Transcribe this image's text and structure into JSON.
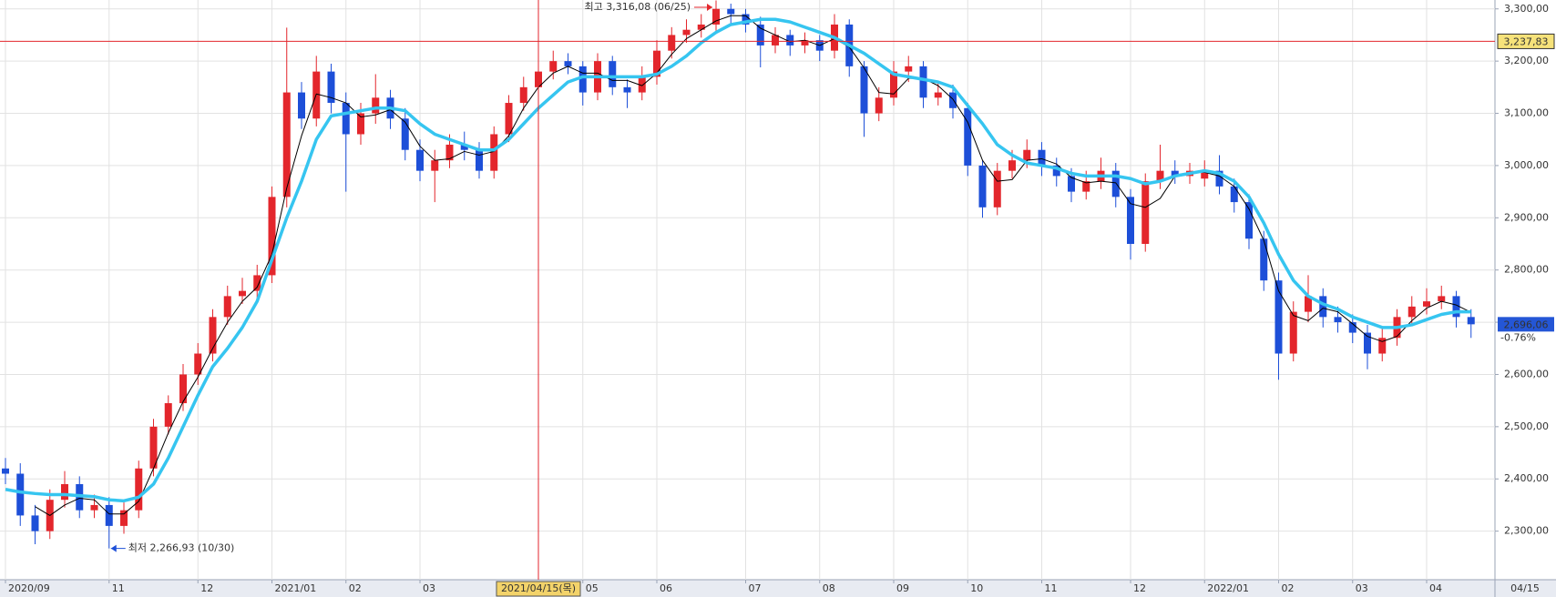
{
  "chart_data": {
    "type": "candlestick",
    "categories": [
      "2020/09",
      null,
      null,
      null,
      null,
      null,
      null,
      "11",
      null,
      null,
      null,
      null,
      null,
      "12",
      null,
      null,
      null,
      null,
      "2021/01",
      null,
      null,
      null,
      null,
      "02",
      null,
      null,
      null,
      null,
      "03",
      null,
      null,
      null,
      null,
      null,
      null,
      null,
      "2021/04/15(목)",
      null,
      null,
      "05",
      null,
      null,
      null,
      null,
      "06",
      null,
      null,
      null,
      null,
      null,
      "07",
      null,
      null,
      null,
      null,
      "08",
      null,
      null,
      null,
      null,
      "09",
      null,
      null,
      null,
      null,
      "10",
      null,
      null,
      null,
      null,
      "11",
      null,
      null,
      null,
      null,
      null,
      "12",
      null,
      null,
      null,
      null,
      "2022/01",
      null,
      null,
      null,
      null,
      "02",
      null,
      null,
      null,
      null,
      "03",
      null,
      null,
      null,
      null,
      "04",
      null,
      null,
      null
    ],
    "open": [
      2420,
      2410,
      2330,
      2300,
      2360,
      2390,
      2340,
      2350,
      2310,
      2340,
      2420,
      2500,
      2545,
      2600,
      2640,
      2710,
      2750,
      2760,
      2790,
      2940,
      3140,
      3090,
      3180,
      3120,
      3060,
      3100,
      3130,
      3090,
      3030,
      2990,
      3010,
      3040,
      3030,
      2990,
      3060,
      3120,
      3150,
      3180,
      3200,
      3190,
      3140,
      3200,
      3150,
      3140,
      3170,
      3220,
      3250,
      3260,
      3270,
      3300,
      3290,
      3270,
      3230,
      3250,
      3230,
      3240,
      3220,
      3270,
      3190,
      3100,
      3130,
      3180,
      3190,
      3130,
      3140,
      3110,
      3000,
      2920,
      2990,
      3010,
      3030,
      3000,
      2980,
      2950,
      2970,
      2990,
      2940,
      2850,
      2970,
      2990,
      2980,
      2975,
      2990,
      2960,
      2930,
      2860,
      2780,
      2640,
      2720,
      2750,
      2710,
      2700,
      2680,
      2640,
      2670,
      2710,
      2730,
      2740,
      2750,
      2710
    ],
    "high": [
      2440,
      2430,
      2350,
      2380,
      2415,
      2405,
      2370,
      2365,
      2355,
      2435,
      2515,
      2560,
      2620,
      2660,
      2725,
      2770,
      2785,
      2810,
      2960,
      3264,
      3160,
      3210,
      3195,
      3140,
      3120,
      3175,
      3145,
      3110,
      3050,
      3030,
      3060,
      3065,
      3045,
      3075,
      3135,
      3170,
      3200,
      3220,
      3215,
      3200,
      3215,
      3210,
      3165,
      3190,
      3240,
      3265,
      3280,
      3290,
      3316.08,
      3310,
      3300,
      3285,
      3265,
      3260,
      3255,
      3250,
      3290,
      3280,
      3200,
      3150,
      3200,
      3210,
      3200,
      3160,
      3155,
      3120,
      3010,
      3005,
      3030,
      3050,
      3045,
      3015,
      2995,
      2990,
      3015,
      3005,
      2955,
      2985,
      3040,
      3010,
      3005,
      3010,
      3020,
      2975,
      2945,
      2875,
      2795,
      2740,
      2790,
      2765,
      2730,
      2715,
      2695,
      2690,
      2725,
      2750,
      2765,
      2770,
      2760,
      2725
    ],
    "low": [
      2390,
      2310,
      2275,
      2285,
      2345,
      2325,
      2325,
      2266.93,
      2295,
      2325,
      2405,
      2485,
      2530,
      2580,
      2625,
      2695,
      2735,
      2745,
      2775,
      2920,
      3070,
      3075,
      3100,
      2950,
      3040,
      3080,
      3070,
      3010,
      2970,
      2930,
      2995,
      3010,
      2975,
      2975,
      3045,
      3105,
      3135,
      3165,
      3175,
      3115,
      3125,
      3135,
      3110,
      3125,
      3155,
      3205,
      3235,
      3245,
      3255,
      3270,
      3255,
      3188,
      3215,
      3210,
      3215,
      3200,
      3205,
      3170,
      3055,
      3085,
      3115,
      3160,
      3110,
      3115,
      3090,
      2980,
      2900,
      2905,
      2975,
      2995,
      2980,
      2960,
      2930,
      2935,
      2955,
      2920,
      2820,
      2835,
      2955,
      2965,
      2965,
      2960,
      2945,
      2910,
      2840,
      2760,
      2590,
      2625,
      2700,
      2690,
      2680,
      2660,
      2610,
      2625,
      2655,
      2695,
      2715,
      2725,
      2690,
      2670
    ],
    "close": [
      2410,
      2330,
      2300,
      2360,
      2390,
      2340,
      2350,
      2310,
      2340,
      2420,
      2500,
      2545,
      2600,
      2640,
      2710,
      2750,
      2760,
      2790,
      2940,
      3140,
      3090,
      3180,
      3120,
      3060,
      3100,
      3130,
      3090,
      3030,
      2990,
      3010,
      3040,
      3030,
      2990,
      3060,
      3120,
      3150,
      3180,
      3200,
      3190,
      3140,
      3200,
      3150,
      3140,
      3170,
      3220,
      3250,
      3260,
      3270,
      3300,
      3290,
      3270,
      3230,
      3250,
      3230,
      3240,
      3220,
      3270,
      3190,
      3100,
      3130,
      3180,
      3190,
      3130,
      3140,
      3110,
      3000,
      2920,
      2990,
      3010,
      3030,
      3000,
      2980,
      2950,
      2970,
      2990,
      2940,
      2850,
      2970,
      2990,
      2980,
      2990,
      2990,
      2960,
      2930,
      2860,
      2780,
      2640,
      2720,
      2750,
      2710,
      2700,
      2680,
      2640,
      2670,
      2710,
      2730,
      2740,
      2750,
      2710,
      2696.06
    ],
    "up_color": "#e3262c",
    "down_color": "#1d4fd8",
    "overlays": [
      {
        "color": "#000000",
        "width": 1,
        "values": [
          null,
          null,
          2347,
          2330,
          2350,
          2363,
          2360,
          2333,
          2333,
          2357,
          2420,
          2488,
          2548,
          2595,
          2650,
          2700,
          2740,
          2767,
          2830,
          2957,
          3057,
          3137,
          3130,
          3120,
          3093,
          3097,
          3107,
          3083,
          3037,
          3010,
          3013,
          3027,
          3020,
          3027,
          3057,
          3110,
          3150,
          3177,
          3190,
          3177,
          3177,
          3163,
          3163,
          3153,
          3177,
          3213,
          3243,
          3260,
          3277,
          3287,
          3287,
          3263,
          3250,
          3237,
          3240,
          3230,
          3243,
          3227,
          3187,
          3140,
          3137,
          3167,
          3167,
          3153,
          3127,
          3083,
          3010,
          2970,
          2973,
          3010,
          3013,
          3003,
          2977,
          2967,
          2970,
          2967,
          2927,
          2920,
          2937,
          2980,
          2987,
          2987,
          2980,
          2960,
          2917,
          2857,
          2760,
          2713,
          2703,
          2727,
          2720,
          2697,
          2673,
          2663,
          2673,
          2703,
          2727,
          2740,
          2733,
          2719
        ]
      },
      {
        "color": "#36c5f0",
        "width": 3.5,
        "values": [
          2380,
          2375,
          2372,
          2370,
          2370,
          2368,
          2366,
          2360,
          2358,
          2365,
          2390,
          2440,
          2500,
          2560,
          2615,
          2650,
          2690,
          2740,
          2820,
          2900,
          2970,
          3050,
          3095,
          3100,
          3105,
          3110,
          3110,
          3105,
          3080,
          3060,
          3050,
          3040,
          3030,
          3030,
          3050,
          3080,
          3110,
          3135,
          3160,
          3170,
          3170,
          3170,
          3170,
          3170,
          3175,
          3190,
          3210,
          3235,
          3255,
          3270,
          3275,
          3280,
          3280,
          3275,
          3265,
          3255,
          3245,
          3230,
          3215,
          3195,
          3175,
          3170,
          3165,
          3160,
          3150,
          3115,
          3080,
          3040,
          3020,
          3005,
          3000,
          2995,
          2985,
          2980,
          2980,
          2980,
          2975,
          2965,
          2970,
          2980,
          2985,
          2990,
          2985,
          2970,
          2940,
          2890,
          2830,
          2780,
          2750,
          2735,
          2725,
          2710,
          2700,
          2690,
          2690,
          2695,
          2705,
          2715,
          2720,
          2720
        ]
      }
    ],
    "ylim": [
      2207,
      3317
    ],
    "yticks": [
      {
        "value": 2300,
        "label": "2,300,00"
      },
      {
        "value": 2400,
        "label": "2,400,00"
      },
      {
        "value": 2500,
        "label": "2,500,00"
      },
      {
        "value": 2600,
        "label": "2,600,00"
      },
      {
        "value": 2700,
        "label": "2,700,00"
      },
      {
        "value": 2800,
        "label": "2,800,00"
      },
      {
        "value": 2900,
        "label": "2,900,00"
      },
      {
        "value": 3000,
        "label": "3,000,00"
      },
      {
        "value": 3100,
        "label": "3,100,00"
      },
      {
        "value": 3200,
        "label": "3,200,00"
      },
      {
        "value": 3300,
        "label": "3,300,00"
      }
    ],
    "grid": true,
    "crosshair": {
      "category": "2021/04/15(목)",
      "value": 3237.83,
      "label": "3,237,83",
      "color": "#e3262c"
    },
    "last": {
      "value": 2696.06,
      "label": "2,696,06",
      "change_label": "-0.76%",
      "color": "#2456d6"
    },
    "x_end_label": "04/15",
    "annotations": [
      {
        "text": "최고 3,316,08 (06/25)",
        "series": "high",
        "value": 3316.08,
        "color": "#e3262c"
      },
      {
        "text": "최저 2,266,93 (10/30)",
        "series": "low",
        "value": 2266.93,
        "color": "#1d4fd8"
      }
    ]
  }
}
